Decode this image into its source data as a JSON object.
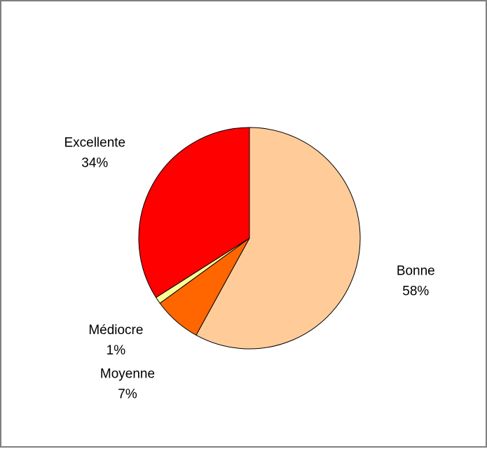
{
  "chart_data": {
    "type": "pie",
    "title": "",
    "start_angle_deg": 0,
    "direction": "clockwise",
    "slices": [
      {
        "label": "Bonne",
        "value": 58,
        "percent_label": "58%",
        "color": "#ffcc99"
      },
      {
        "label": "Moyenne",
        "value": 7,
        "percent_label": "7%",
        "color": "#ff6600"
      },
      {
        "label": "Médiocre",
        "value": 1,
        "percent_label": "1%",
        "color": "#ffff99"
      },
      {
        "label": "Excellente",
        "value": 34,
        "percent_label": "34%",
        "color": "#ff0000"
      }
    ],
    "legend": "none",
    "data_labels": "outside"
  }
}
